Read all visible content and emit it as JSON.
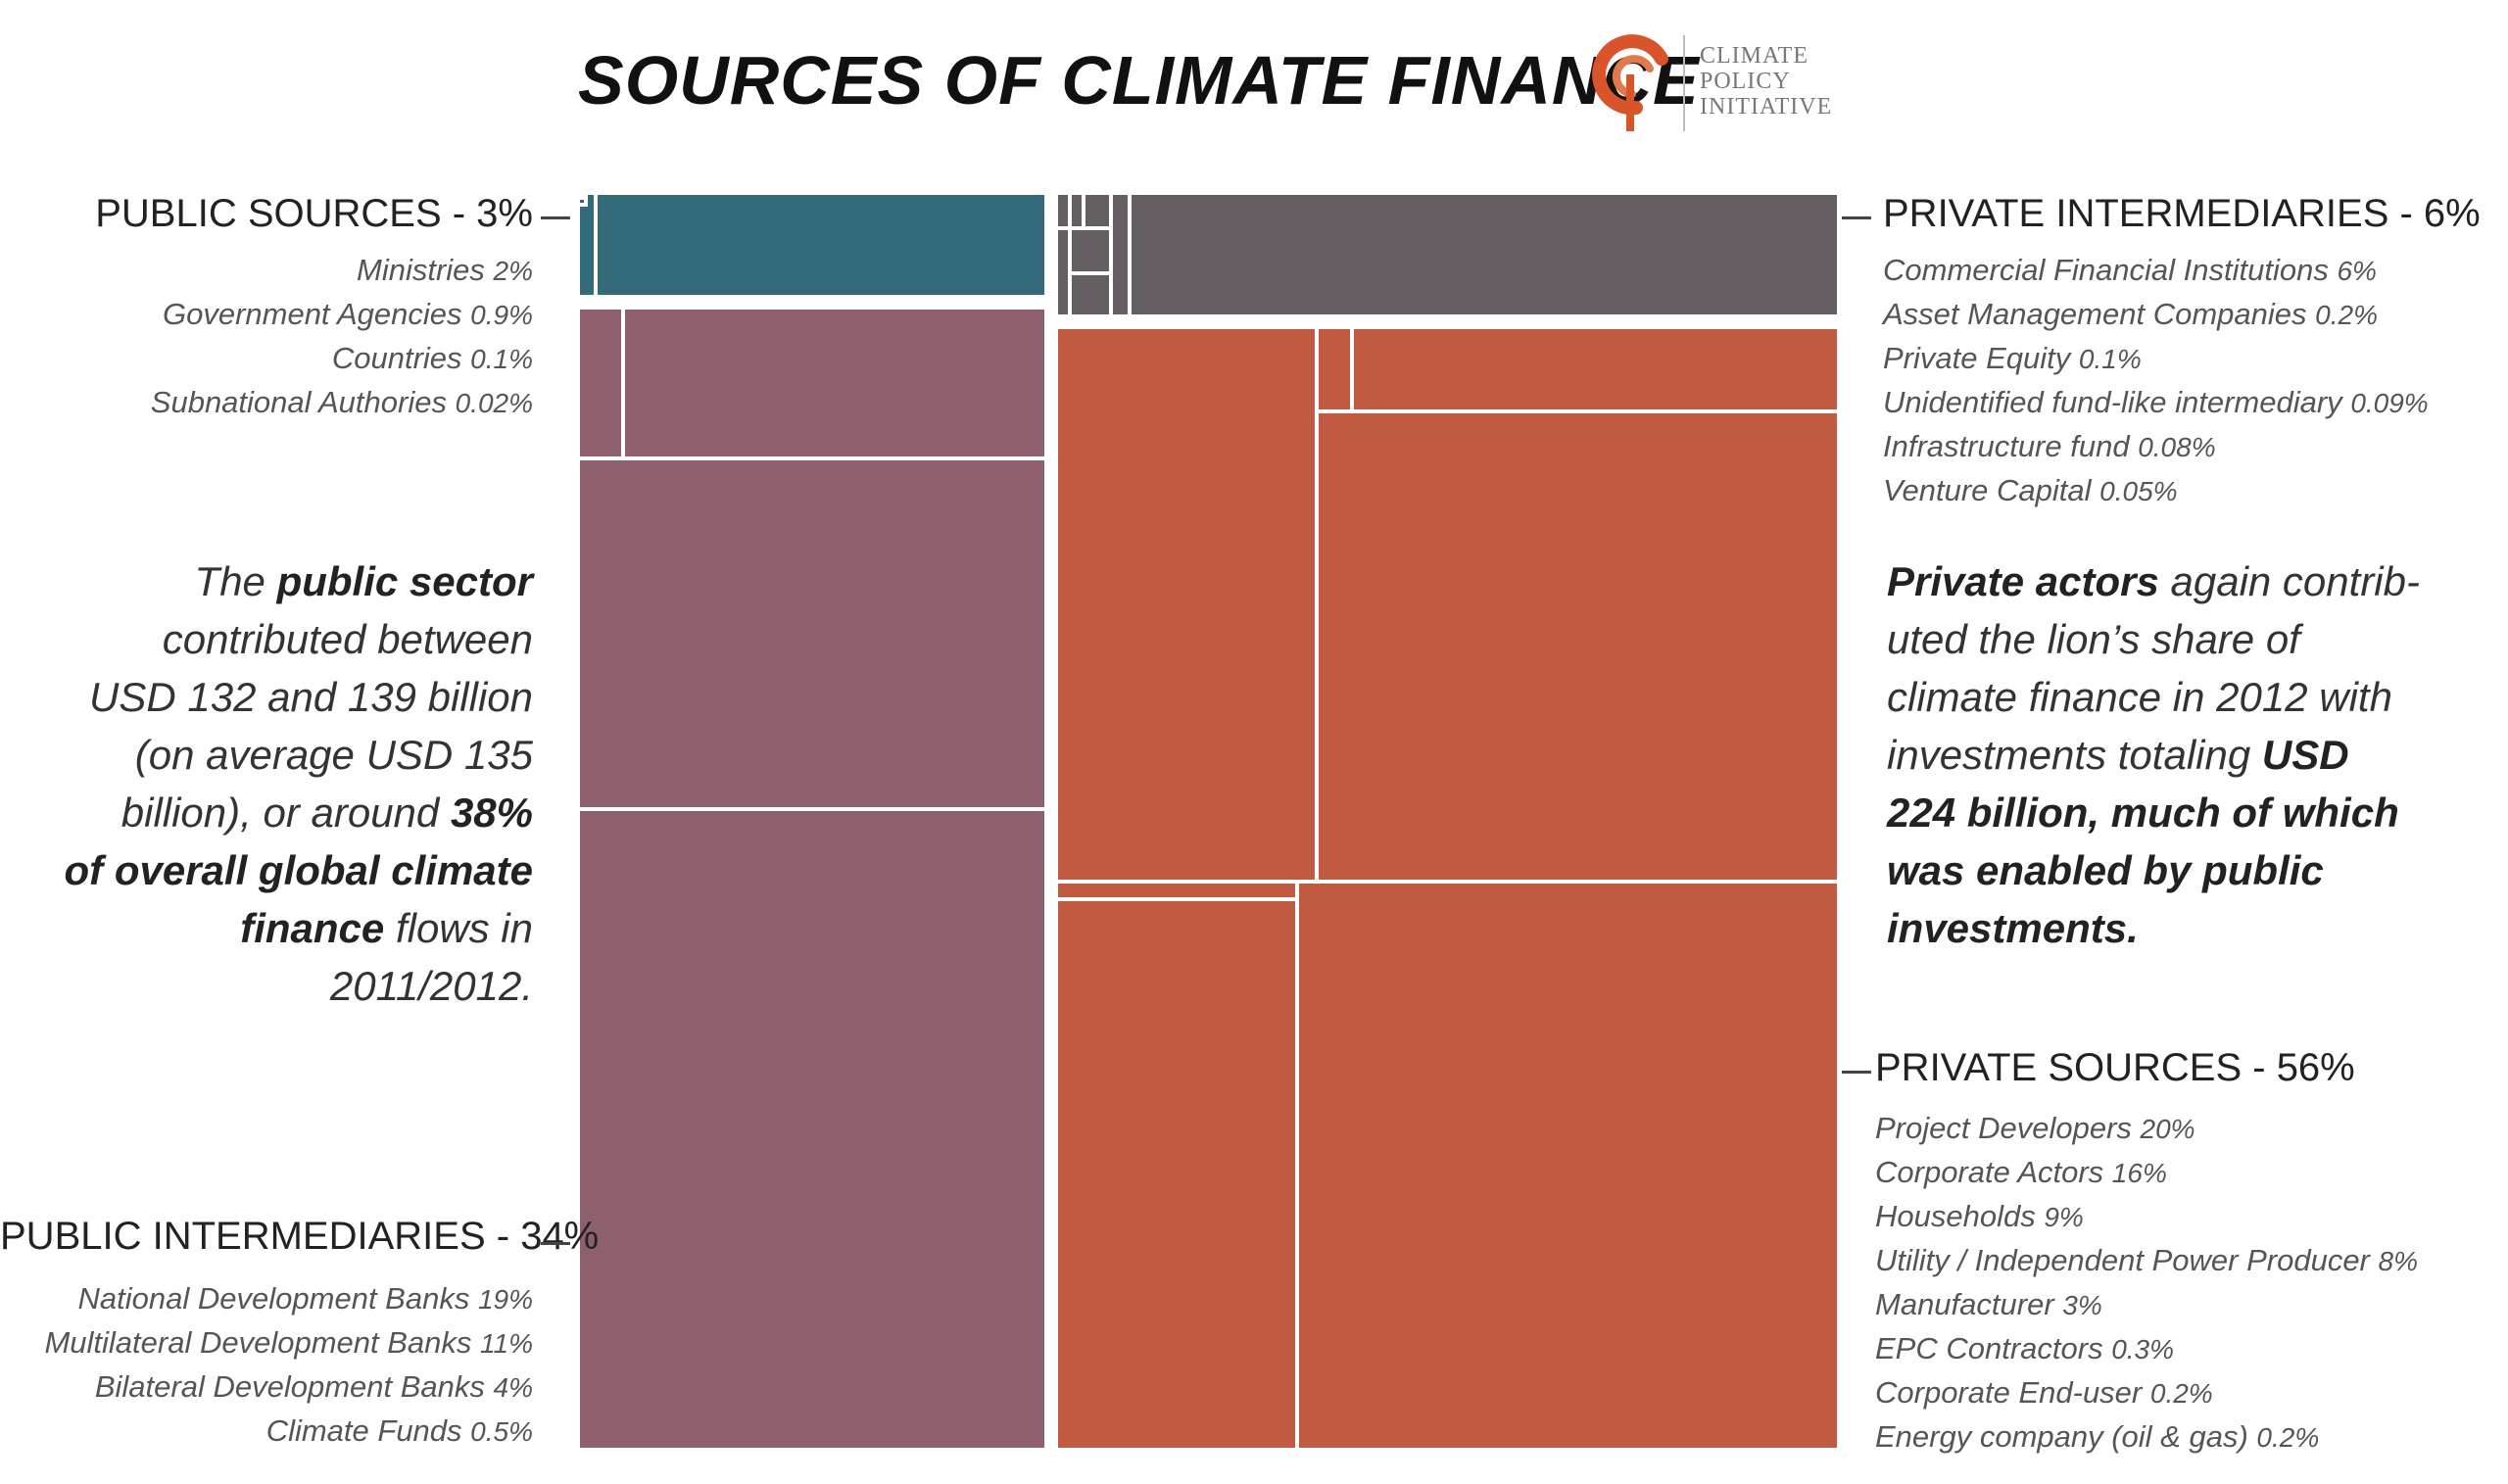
{
  "title": "SOURCES OF CLIMATE FINANCE",
  "logo": {
    "line1": "CLIMATE",
    "line2": "POLICY",
    "line3": "INITIATIVE",
    "color": "#d9532b"
  },
  "colors": {
    "public_sources": "#336b7a",
    "public_intermediaries": "#8e606d",
    "private_intermediaries": "#655f64",
    "private_sources": "#c05a40"
  },
  "chart_data": {
    "type": "treemap",
    "title": "SOURCES OF CLIMATE FINANCE",
    "groups": [
      {
        "name": "PUBLIC SOURCES - 3%",
        "share": 3,
        "items": [
          {
            "label": "Ministries",
            "value": 2,
            "value_label": "2%"
          },
          {
            "label": "Government Agencies",
            "value": 0.9,
            "value_label": "0.9%"
          },
          {
            "label": "Countries",
            "value": 0.1,
            "value_label": "0.1%"
          },
          {
            "label": "Subnational Authories",
            "value": 0.02,
            "value_label": "0.02%"
          }
        ]
      },
      {
        "name": "PUBLIC INTERMEDIARIES - 34%",
        "share": 34,
        "items": [
          {
            "label": "National Development Banks",
            "value": 19,
            "value_label": "19%"
          },
          {
            "label": "Multilateral Development Banks",
            "value": 11,
            "value_label": "11%"
          },
          {
            "label": "Bilateral Development Banks",
            "value": 4,
            "value_label": "4%"
          },
          {
            "label": "Climate Funds",
            "value": 0.5,
            "value_label": "0.5%"
          }
        ]
      },
      {
        "name": "PRIVATE INTERMEDIARIES - 6%",
        "share": 6,
        "items": [
          {
            "label": "Commercial Financial Institutions",
            "value": 6,
            "value_label": "6%"
          },
          {
            "label": "Asset Management Companies",
            "value": 0.2,
            "value_label": "0.2%"
          },
          {
            "label": "Private Equity",
            "value": 0.1,
            "value_label": "0.1%"
          },
          {
            "label": "Unidentified fund-like intermediary",
            "value": 0.09,
            "value_label": "0.09%"
          },
          {
            "label": "Infrastructure fund",
            "value": 0.08,
            "value_label": "0.08%"
          },
          {
            "label": "Venture Capital",
            "value": 0.05,
            "value_label": "0.05%"
          }
        ]
      },
      {
        "name": "PRIVATE SOURCES - 56%",
        "share": 56,
        "items": [
          {
            "label": "Project Developers",
            "value": 20,
            "value_label": "20%"
          },
          {
            "label": "Corporate Actors",
            "value": 16,
            "value_label": "16%"
          },
          {
            "label": "Households",
            "value": 9,
            "value_label": "9%"
          },
          {
            "label": "Utility / Independent Power Producer",
            "value": 8,
            "value_label": "8%"
          },
          {
            "label": "Manufacturer",
            "value": 3,
            "value_label": "3%"
          },
          {
            "label": "EPC Contractors",
            "value": 0.3,
            "value_label": "0.3%"
          },
          {
            "label": "Corporate End-user",
            "value": 0.2,
            "value_label": "0.2%"
          },
          {
            "label": "Energy company (oil & gas)",
            "value": 0.2,
            "value_label": "0.2%"
          }
        ]
      }
    ]
  },
  "text_left": {
    "l1a": "The ",
    "l1b": "public sector",
    "l2": "contributed between",
    "l3": "USD 132 and 139 billion",
    "l4": "(on average USD 135",
    "l5a": "billion), or around ",
    "l5b": "38%",
    "l6": "of overall global climate",
    "l7a": "finance",
    "l7b": " flows in",
    "l8": "2011/2012."
  },
  "text_right": {
    "l1a": "Private actors",
    "l1b": " again contrib-",
    "l2": "uted the lion’s share of",
    "l3": "climate finance in 2012 with",
    "l4a": "investments totaling ",
    "l4b": "USD",
    "l5": "224 billion, much of which",
    "l6": "was enabled by public",
    "l7": "investments."
  }
}
